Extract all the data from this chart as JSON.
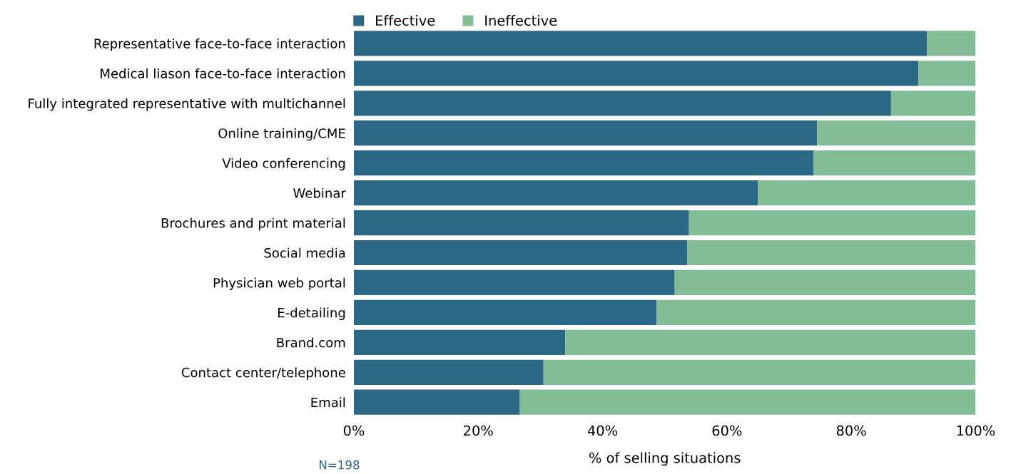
{
  "chart_data": {
    "type": "bar",
    "orientation": "horizontal",
    "stacked": true,
    "categories": [
      "Representative face-to-face interaction",
      "Medical liason face-to-face interaction",
      "Fully integrated representative with multichannel",
      "Online training/CME",
      "Video conferencing",
      "Webinar",
      "Brochures and print material",
      "Social media",
      "Physician web portal",
      "E-detailing",
      "Brand.com",
      "Contact center/telephone",
      "Email"
    ],
    "series": [
      {
        "name": "Effective",
        "color": "#2b6886",
        "values": [
          92.2,
          90.8,
          86.4,
          74.5,
          73.9,
          65.0,
          53.9,
          53.6,
          51.6,
          48.7,
          34.0,
          30.5,
          26.7
        ]
      },
      {
        "name": "Ineffective",
        "color": "#83bd95",
        "values": [
          7.8,
          9.2,
          13.6,
          25.5,
          26.1,
          35.0,
          46.1,
          46.4,
          48.4,
          51.3,
          66.0,
          69.5,
          73.3
        ]
      }
    ],
    "xlim": [
      0,
      100
    ],
    "xticks": [
      {
        "value": 0,
        "label": "0%"
      },
      {
        "value": 20,
        "label": "20%"
      },
      {
        "value": 40,
        "label": "40%"
      },
      {
        "value": 60,
        "label": "60%"
      },
      {
        "value": 80,
        "label": "80%"
      },
      {
        "value": 100,
        "label": "100%"
      }
    ],
    "xlabel": "% of selling situations",
    "annotations": [
      "N=198"
    ],
    "legend": "top left",
    "grid": false
  }
}
